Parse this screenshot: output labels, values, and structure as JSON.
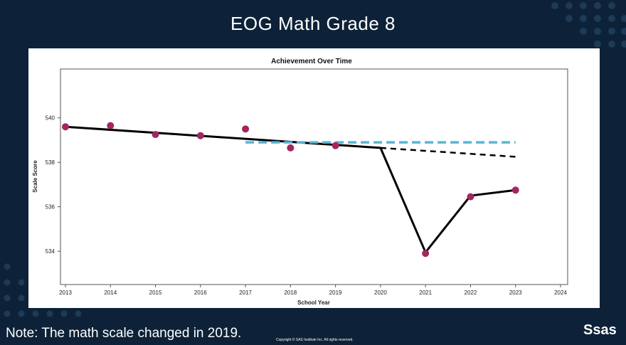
{
  "slide": {
    "title": "EOG Math Grade  8",
    "note": "Note: The math scale changed in 2019.",
    "copyright": "Copyright © SAS Institute Inc. All rights reserved.",
    "logo": "Ssas"
  },
  "colors": {
    "background": "#0d2238",
    "points": "#a2275f",
    "trend_line": "#000000",
    "reference_line": "#5ab4d6"
  },
  "chart_data": {
    "type": "line",
    "title": "Achievement Over Time",
    "xlabel": "School Year",
    "ylabel": "Scale Score",
    "xlim": [
      2013,
      2024
    ],
    "ylim": [
      532.5,
      542.2
    ],
    "x_ticks": [
      2013,
      2014,
      2015,
      2016,
      2017,
      2018,
      2019,
      2020,
      2021,
      2022,
      2023,
      2024
    ],
    "y_ticks": [
      534,
      536,
      538,
      540
    ],
    "grid": false,
    "series": [
      {
        "style": "points",
        "x": [
          2013,
          2014,
          2015,
          2016,
          2017,
          2018,
          2019,
          2021,
          2022,
          2023
        ],
        "y": [
          539.6,
          539.65,
          539.25,
          539.2,
          539.5,
          538.65,
          538.75,
          533.9,
          536.45,
          536.75
        ]
      },
      {
        "style": "solid-line",
        "x": [
          2013,
          2020,
          2021,
          2022,
          2023
        ],
        "y": [
          539.6,
          538.65,
          533.95,
          536.5,
          536.75
        ]
      },
      {
        "style": "dashed-line",
        "x": [
          2020,
          2023
        ],
        "y": [
          538.65,
          538.25
        ]
      },
      {
        "style": "dashed-reference",
        "x": [
          2017,
          2023
        ],
        "y": [
          538.9,
          538.9
        ]
      }
    ]
  }
}
